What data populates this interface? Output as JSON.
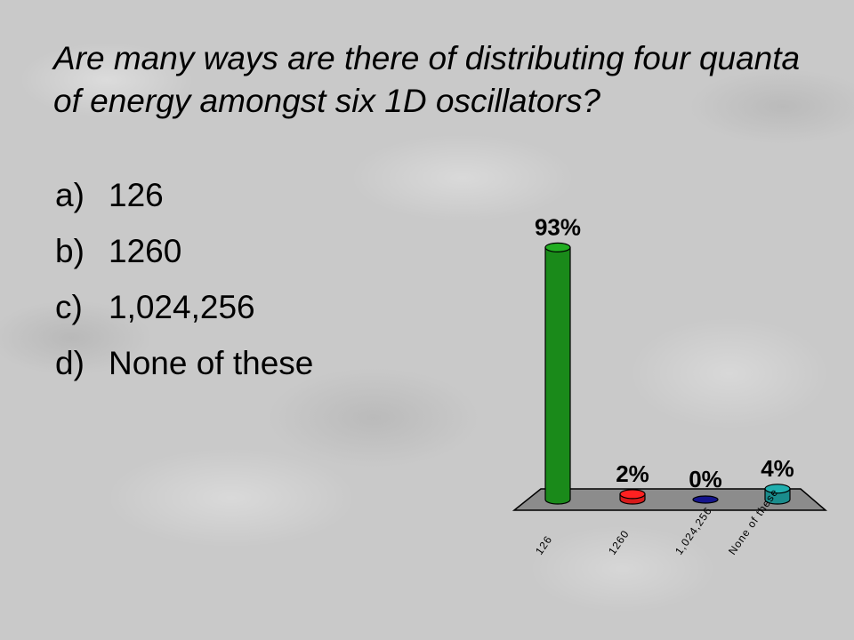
{
  "question": {
    "text": "Are many ways are there of distributing four quanta of energy amongst six 1D oscillators?"
  },
  "options": [
    {
      "letter": "a)",
      "text": "126"
    },
    {
      "letter": "b)",
      "text": "1260"
    },
    {
      "letter": "c)",
      "text": "1,024,256"
    },
    {
      "letter": "d)",
      "text": "None of these"
    }
  ],
  "chart_data": {
    "type": "bar",
    "categories": [
      "126",
      "1260",
      "1,024,256",
      "None of these"
    ],
    "values": [
      93,
      2,
      0,
      4
    ],
    "data_labels": [
      "93%",
      "2%",
      "0%",
      "4%"
    ],
    "colors": [
      "#1a8a1a",
      "#d61a1a",
      "#14148c",
      "#1a8c8c"
    ],
    "ylim": [
      0,
      100
    ],
    "title": "",
    "xlabel": "",
    "ylabel": "",
    "grid": false,
    "floor_color": "#8c8c8c"
  }
}
